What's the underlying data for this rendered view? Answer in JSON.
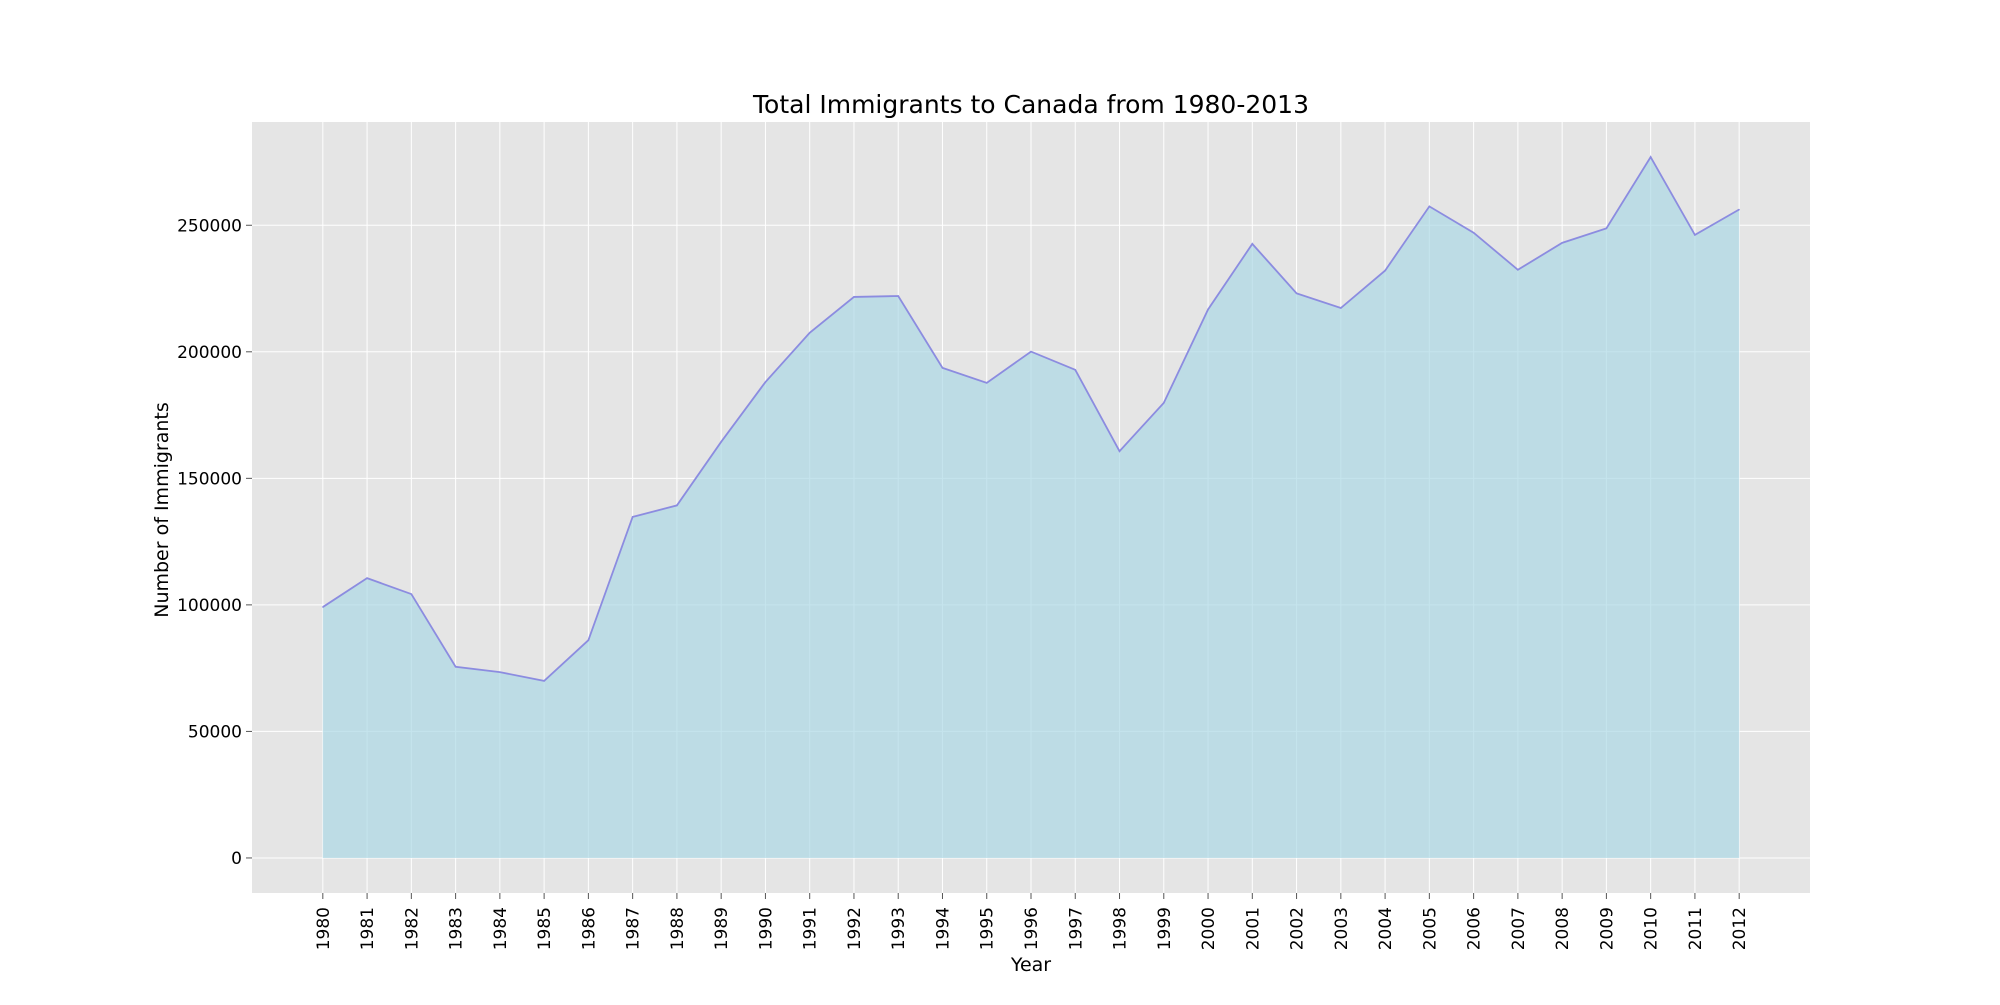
{
  "chart_data": {
    "type": "area",
    "title": "Total Immigrants to Canada from 1980-2013",
    "xlabel": "Year",
    "ylabel": "Number of Immigrants",
    "x": [
      1980,
      1981,
      1982,
      1983,
      1984,
      1985,
      1986,
      1987,
      1988,
      1989,
      1990,
      1991,
      1992,
      1993,
      1994,
      1995,
      1996,
      1997,
      1998,
      1999,
      2000,
      2001,
      2002,
      2003,
      2004,
      2005,
      2006,
      2007,
      2008,
      2009,
      2010,
      2011,
      2012
    ],
    "x_tick_labels": [
      "1980",
      "1981",
      "1982",
      "1983",
      "1984",
      "1985",
      "1986",
      "1987",
      "1988",
      "1989",
      "1990",
      "1991",
      "1992",
      "1993",
      "1994",
      "1995",
      "1996",
      "1997",
      "1998",
      "1999",
      "2000",
      "2001",
      "2002",
      "2003",
      "2004",
      "2005",
      "2006",
      "2007",
      "2008",
      "2009",
      "2010",
      "2011",
      "2012"
    ],
    "series": [
      {
        "values": [
          99137,
          110563,
          104271,
          75550,
          73417,
          69978,
          86048,
          134771,
          139306,
          164432,
          188054,
          207509,
          221687,
          222049,
          193665,
          187712,
          200085,
          192885,
          160727,
          179818,
          216712,
          242643,
          223111,
          217297,
          232083,
          257457,
          247057,
          232405,
          243047,
          248768,
          276956,
          246194,
          256222
        ],
        "line_color": "#8c8ce0",
        "fill_color": "#add8e6",
        "fill_opacity": 0.7
      }
    ],
    "yticks": [
      0,
      50000,
      100000,
      150000,
      200000,
      250000
    ],
    "y_tick_labels": [
      "0",
      "50000",
      "100000",
      "150000",
      "200000",
      "250000"
    ],
    "xlim": [
      1978.4,
      2013.6
    ],
    "ylim": [
      -13848,
      290804
    ],
    "grid": true,
    "style": {
      "axes_bg": "#e5e5e5",
      "grid_color": "#ffffff"
    }
  }
}
